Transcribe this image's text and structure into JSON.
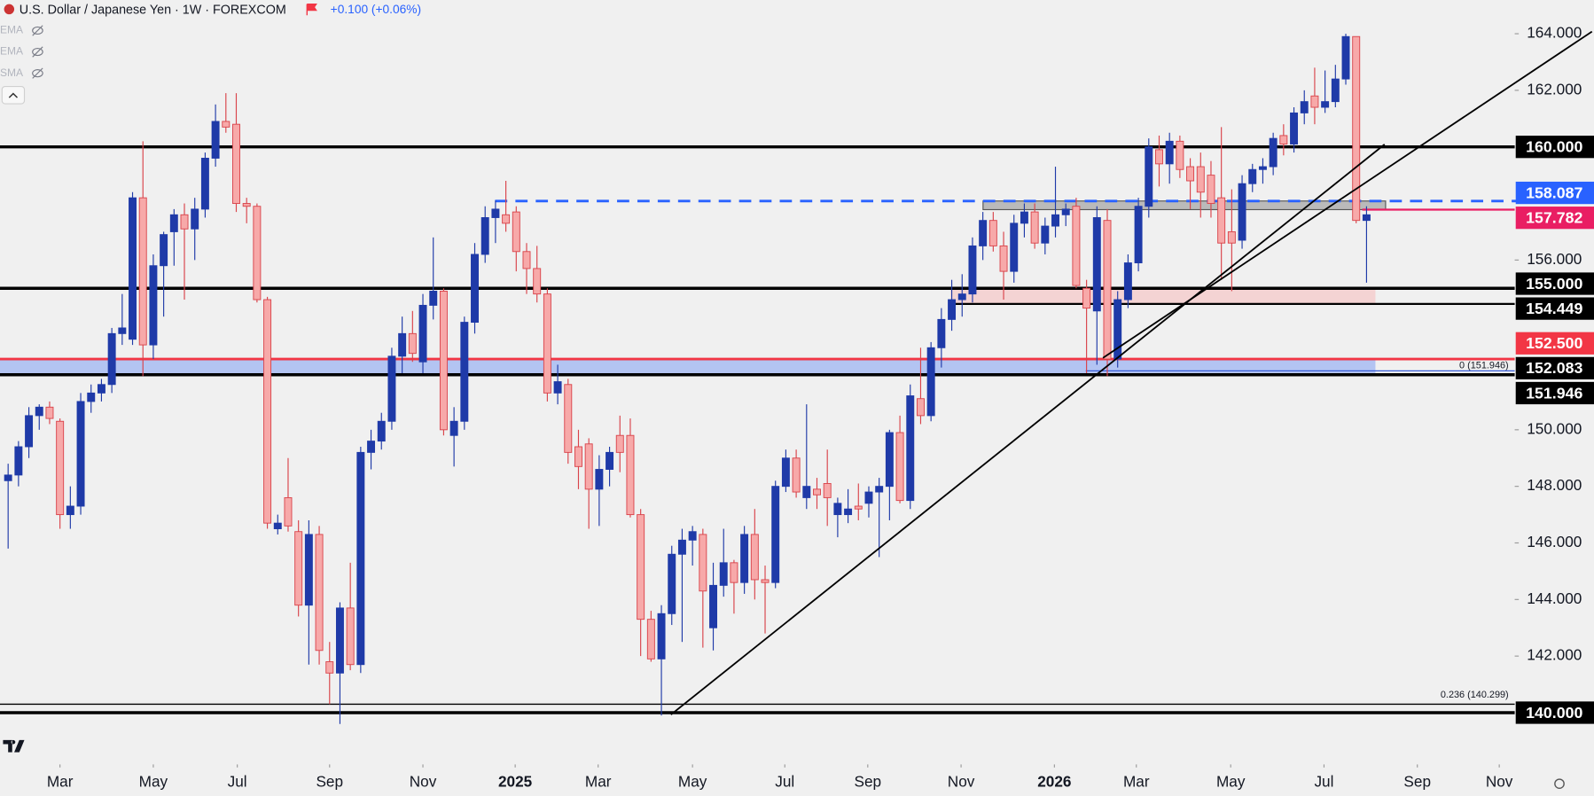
{
  "chart_data": {
    "type": "candlestick",
    "title": "U.S. Dollar / Japanese Yen · 1W · FOREXCOM",
    "change": "+0.100 (+0.06%)",
    "indicators": [
      "EMA",
      "EMA",
      "SMA"
    ],
    "up_color": "#1f3aa8",
    "down_color": "#f7a9a9",
    "down_border": "#d9434a",
    "ylim": [
      138.17,
      165.19
    ],
    "yticks": [
      {
        "value": 164,
        "label": "164.000"
      },
      {
        "value": 162,
        "label": "162.000"
      },
      {
        "value": 156,
        "label": "156.000"
      },
      {
        "value": 150,
        "label": "150.000"
      },
      {
        "value": 148,
        "label": "148.000"
      },
      {
        "value": 146,
        "label": "146.000"
      },
      {
        "value": 144,
        "label": "144.000"
      },
      {
        "value": 142,
        "label": "142.000"
      }
    ],
    "xlim": [
      -0.784,
      145.29
    ],
    "xticks": [
      {
        "value": 5.0,
        "label": "Mar"
      },
      {
        "value": 14.0,
        "label": "May"
      },
      {
        "value": 22.1,
        "label": "Jul"
      },
      {
        "value": 31.0,
        "label": "Sep"
      },
      {
        "value": 40.0,
        "label": "Nov"
      },
      {
        "value": 48.9,
        "label": "2025"
      },
      {
        "value": 56.9,
        "label": "Mar"
      },
      {
        "value": 66.0,
        "label": "May"
      },
      {
        "value": 74.9,
        "label": "Jul"
      },
      {
        "value": 82.9,
        "label": "Sep"
      },
      {
        "value": 91.9,
        "label": "Nov"
      },
      {
        "value": 100.9,
        "label": "2026"
      },
      {
        "value": 108.8,
        "label": "Mar"
      },
      {
        "value": 117.9,
        "label": "May"
      },
      {
        "value": 126.9,
        "label": "Jul"
      },
      {
        "value": 135.9,
        "label": "Sep"
      },
      {
        "value": 143.8,
        "label": "Nov"
      }
    ],
    "levels": [
      {
        "value": 160,
        "label": "160.000",
        "color": "#000000"
      },
      {
        "value": 158.087,
        "label": "158.087",
        "color": "#2962ff",
        "dash": true
      },
      {
        "value": 157.782,
        "label": "157.782",
        "color": "#e91e63"
      },
      {
        "value": 155,
        "label": "155.000",
        "color": "#000000"
      },
      {
        "value": 154.449,
        "label": "154.449",
        "color": "#000000"
      },
      {
        "value": 152.5,
        "label": "152.500",
        "color": "#f23645"
      },
      {
        "value": 152.083,
        "label": "152.083",
        "color": "#000000"
      },
      {
        "value": 151.946,
        "label": "151.946",
        "color": "#000000"
      },
      {
        "value": 140,
        "label": "140.000",
        "color": "#000000"
      }
    ],
    "zones": [
      {
        "low": 157.782,
        "high": 158.087,
        "color": "#a8a8a8"
      },
      {
        "low": 154.449,
        "high": 155,
        "color": "#f6c9c9"
      },
      {
        "low": 151.946,
        "high": 152.5,
        "color": "#9fb6f3"
      }
    ],
    "fibs": [
      {
        "value": 151.946,
        "label": "0 (151.946)"
      },
      {
        "value": 140.299,
        "label": "0.236 (140.299)"
      }
    ],
    "candles": [
      [
        148.2,
        148.8,
        145.8,
        148.4
      ],
      [
        148.4,
        149.6,
        148.0,
        149.4
      ],
      [
        149.4,
        150.8,
        149.0,
        150.5
      ],
      [
        150.5,
        150.9,
        150.0,
        150.8
      ],
      [
        150.8,
        151.0,
        150.2,
        150.4
      ],
      [
        150.3,
        150.4,
        146.5,
        147.0
      ],
      [
        147.0,
        148.0,
        146.5,
        147.3
      ],
      [
        147.3,
        151.3,
        147.0,
        151.0
      ],
      [
        151.0,
        151.6,
        150.6,
        151.3
      ],
      [
        151.3,
        151.8,
        151.0,
        151.6
      ],
      [
        151.6,
        153.6,
        151.3,
        153.4
      ],
      [
        153.4,
        154.8,
        153.0,
        153.6
      ],
      [
        153.2,
        158.4,
        153.0,
        158.2
      ],
      [
        158.2,
        160.2,
        151.9,
        153.0
      ],
      [
        153.0,
        156.2,
        152.5,
        155.8
      ],
      [
        155.8,
        157.0,
        154.0,
        156.9
      ],
      [
        157.0,
        157.8,
        155.8,
        157.6
      ],
      [
        157.6,
        158.0,
        154.6,
        157.1
      ],
      [
        157.1,
        158.2,
        156.0,
        157.8
      ],
      [
        157.8,
        159.8,
        157.5,
        159.6
      ],
      [
        159.6,
        161.5,
        159.3,
        160.9
      ],
      [
        160.9,
        161.9,
        160.5,
        160.7
      ],
      [
        160.8,
        161.9,
        157.7,
        158.0
      ],
      [
        158.0,
        158.2,
        157.3,
        157.9
      ],
      [
        157.9,
        158.0,
        154.5,
        154.6
      ],
      [
        154.6,
        154.7,
        146.5,
        146.7
      ],
      [
        146.5,
        147.0,
        146.3,
        146.7
      ],
      [
        147.6,
        149.0,
        146.4,
        146.6
      ],
      [
        146.4,
        146.8,
        143.4,
        143.8
      ],
      [
        143.8,
        146.8,
        141.7,
        146.3
      ],
      [
        146.3,
        146.6,
        141.7,
        142.2
      ],
      [
        141.8,
        142.5,
        140.3,
        141.4
      ],
      [
        141.4,
        143.9,
        139.6,
        143.7
      ],
      [
        143.7,
        145.3,
        141.5,
        141.7
      ],
      [
        141.7,
        149.4,
        141.4,
        149.2
      ],
      [
        149.2,
        150.0,
        148.6,
        149.6
      ],
      [
        149.6,
        150.6,
        149.3,
        150.3
      ],
      [
        150.3,
        152.9,
        150.0,
        152.6
      ],
      [
        152.6,
        154.0,
        152.0,
        153.4
      ],
      [
        153.4,
        154.2,
        152.4,
        152.7
      ],
      [
        152.4,
        154.8,
        152.0,
        154.4
      ],
      [
        154.4,
        156.8,
        153.9,
        154.9
      ],
      [
        154.9,
        155.0,
        149.8,
        150.0
      ],
      [
        149.8,
        150.8,
        148.7,
        150.3
      ],
      [
        150.3,
        154.0,
        150.0,
        153.8
      ],
      [
        153.8,
        156.6,
        153.4,
        156.2
      ],
      [
        156.2,
        157.9,
        155.9,
        157.5
      ],
      [
        157.5,
        158.1,
        156.6,
        157.8
      ],
      [
        157.6,
        158.8,
        157.0,
        157.3
      ],
      [
        157.7,
        157.9,
        155.6,
        156.3
      ],
      [
        156.3,
        156.6,
        154.8,
        155.7
      ],
      [
        155.7,
        156.5,
        154.5,
        154.8
      ],
      [
        154.8,
        155.0,
        151.0,
        151.3
      ],
      [
        151.3,
        152.3,
        150.9,
        151.7
      ],
      [
        151.6,
        151.8,
        148.8,
        149.2
      ],
      [
        149.4,
        150.0,
        147.9,
        148.7
      ],
      [
        149.5,
        149.7,
        146.5,
        147.9
      ],
      [
        147.9,
        149.1,
        146.6,
        148.6
      ],
      [
        148.6,
        149.4,
        148.0,
        149.2
      ],
      [
        149.8,
        150.5,
        148.5,
        149.2
      ],
      [
        149.8,
        150.4,
        146.9,
        147.0
      ],
      [
        147.0,
        147.2,
        142.0,
        143.3
      ],
      [
        143.3,
        143.6,
        141.8,
        141.9
      ],
      [
        141.9,
        143.8,
        139.9,
        143.5
      ],
      [
        143.5,
        145.9,
        143.1,
        145.6
      ],
      [
        145.6,
        146.5,
        142.5,
        146.1
      ],
      [
        146.1,
        146.6,
        145.2,
        146.4
      ],
      [
        146.3,
        146.5,
        142.3,
        144.3
      ],
      [
        143.0,
        145.3,
        142.2,
        144.5
      ],
      [
        144.5,
        146.5,
        144.1,
        145.3
      ],
      [
        145.3,
        145.4,
        143.5,
        144.6
      ],
      [
        144.6,
        146.6,
        144.2,
        146.3
      ],
      [
        146.3,
        147.2,
        144.0,
        144.7
      ],
      [
        144.7,
        145.2,
        142.8,
        144.6
      ],
      [
        144.6,
        148.2,
        144.4,
        148.0
      ],
      [
        148.0,
        149.3,
        147.8,
        149.0
      ],
      [
        149.0,
        149.3,
        147.6,
        147.8
      ],
      [
        147.6,
        150.9,
        147.2,
        148.0
      ],
      [
        147.9,
        148.3,
        147.2,
        147.7
      ],
      [
        148.1,
        149.3,
        146.6,
        147.6
      ],
      [
        147.0,
        147.6,
        146.2,
        147.4
      ],
      [
        147.0,
        147.9,
        146.7,
        147.2
      ],
      [
        147.3,
        148.1,
        146.8,
        147.2
      ],
      [
        147.4,
        148.0,
        146.9,
        147.8
      ],
      [
        147.8,
        148.3,
        145.5,
        148.0
      ],
      [
        148.0,
        150.0,
        146.8,
        149.9
      ],
      [
        149.9,
        150.5,
        147.4,
        147.5
      ],
      [
        147.5,
        151.6,
        147.2,
        151.2
      ],
      [
        151.1,
        152.9,
        150.2,
        150.5
      ],
      [
        150.5,
        153.1,
        150.3,
        152.9
      ],
      [
        152.9,
        154.3,
        152.2,
        153.9
      ],
      [
        153.9,
        155.3,
        153.5,
        154.6
      ],
      [
        154.6,
        155.5,
        154.0,
        154.8
      ],
      [
        154.8,
        156.8,
        154.5,
        156.5
      ],
      [
        156.5,
        157.7,
        156.0,
        157.4
      ],
      [
        157.4,
        157.7,
        156.3,
        156.5
      ],
      [
        156.5,
        157.0,
        154.6,
        155.6
      ],
      [
        155.6,
        157.6,
        155.2,
        157.3
      ],
      [
        157.3,
        158.0,
        156.8,
        157.7
      ],
      [
        157.7,
        158.0,
        156.4,
        156.6
      ],
      [
        156.6,
        157.5,
        156.2,
        157.2
      ],
      [
        157.2,
        159.3,
        156.8,
        157.6
      ],
      [
        157.6,
        158.0,
        157.2,
        157.8
      ],
      [
        157.9,
        158.2,
        155.0,
        155.1
      ],
      [
        155.0,
        155.3,
        152.0,
        154.3
      ],
      [
        154.2,
        157.9,
        152.3,
        157.5
      ],
      [
        157.4,
        157.8,
        151.9,
        152.5
      ],
      [
        152.5,
        154.9,
        152.2,
        154.6
      ],
      [
        154.6,
        156.2,
        154.3,
        155.9
      ],
      [
        155.9,
        158.2,
        155.6,
        157.9
      ],
      [
        157.9,
        160.3,
        157.5,
        160.0
      ],
      [
        159.9,
        160.4,
        158.6,
        159.4
      ],
      [
        159.4,
        160.5,
        158.7,
        160.2
      ],
      [
        160.2,
        160.4,
        158.9,
        159.2
      ],
      [
        159.3,
        159.6,
        157.8,
        158.8
      ],
      [
        159.3,
        159.8,
        157.5,
        158.4
      ],
      [
        159.0,
        159.5,
        157.5,
        158.0
      ],
      [
        158.2,
        160.7,
        155.3,
        156.6
      ],
      [
        157.0,
        158.5,
        154.9,
        156.6
      ],
      [
        156.7,
        159.0,
        156.4,
        158.7
      ],
      [
        158.7,
        159.4,
        158.4,
        159.2
      ],
      [
        159.2,
        159.6,
        158.7,
        159.3
      ],
      [
        159.3,
        160.5,
        159.0,
        160.3
      ],
      [
        160.4,
        160.8,
        159.7,
        160.1
      ],
      [
        160.1,
        161.4,
        159.8,
        161.2
      ],
      [
        161.2,
        162.0,
        160.8,
        161.6
      ],
      [
        161.8,
        162.8,
        160.8,
        161.4
      ],
      [
        161.4,
        162.7,
        161.2,
        161.6
      ],
      [
        161.6,
        162.9,
        161.4,
        162.4
      ],
      [
        162.4,
        164.0,
        162.2,
        163.9
      ],
      [
        163.9,
        163.9,
        157.3,
        157.4
      ],
      [
        157.4,
        157.9,
        155.2,
        157.6
      ]
    ]
  }
}
